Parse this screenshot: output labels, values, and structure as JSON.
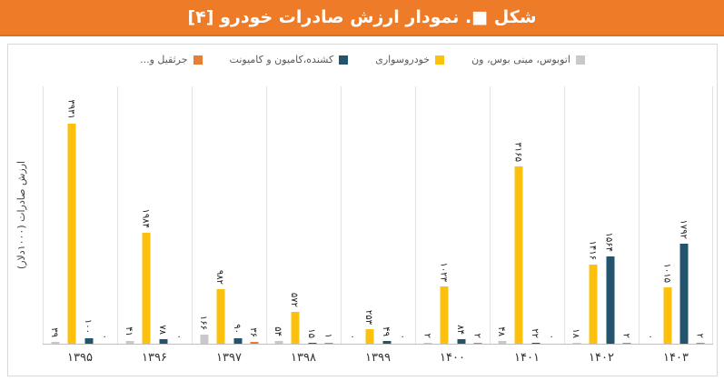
{
  "header": {
    "title": "شکل ■. نمودار ارزش صادرات خودرو [۴]",
    "bg_color": "#EE7B27",
    "text_color": "#FFFFFF"
  },
  "chart_data": {
    "type": "bar",
    "direction": "rtl",
    "title": "نمودار ارزش صادرات خودرو",
    "ylabel": "ارزش صادرات (۱۰۰۰دلار)",
    "xlabel": "",
    "categories": [
      "۱۳۹۵",
      "۱۳۹۶",
      "۱۳۹۷",
      "۱۳۹۸",
      "۱۳۹۹",
      "۱۴۰۰",
      "۱۴۰۱",
      "۱۴۰۲",
      "۱۴۰۳"
    ],
    "categories_en": [
      1395,
      1396,
      1397,
      1398,
      1399,
      1400,
      1401,
      1402,
      1403
    ],
    "ylim": [
      0,
      4600
    ],
    "y_ticks_visible": false,
    "grid": "vertical-category-separators",
    "legend_position": "top-center",
    "series": [
      {
        "key": "bus-minibus-van",
        "name": "اتوبوس، مینی بوس، ون",
        "color": "#C9C9C9",
        "values": [
          39,
          41,
          166,
          54,
          0,
          2,
          48,
          18,
          0
        ],
        "labels_fa": [
          "۳۹",
          "۴۱",
          "۱۶۶",
          "۵۴",
          "۰",
          "۲",
          "۴۸",
          "۱۸",
          "۰"
        ]
      },
      {
        "key": "passenger-car",
        "name": "خودروسواری",
        "color": "#FCC00D",
        "values": [
          3931,
          1984,
          982,
          572,
          253,
          1023,
          3165,
          1416,
          1015
        ],
        "labels_fa": [
          "۳۹۳۱",
          "۱۹۸۴",
          "۹۸۲",
          "۵۷۲",
          "۲۵۳",
          "۱۰۲۳",
          "۳۱۶۵",
          "۱۴۱۶",
          "۱۰۱۵"
        ]
      },
      {
        "key": "truck-trailer",
        "name": "کشنده،کامیون و کامیونت",
        "color": "#24536E",
        "values": [
          100,
          78,
          90,
          15,
          49,
          84,
          22,
          1564,
          1792
        ],
        "labels_fa": [
          "۱۰۰",
          "۷۸",
          "۹۰",
          "۱۵",
          "۴۹",
          "۸۴",
          "۲۲",
          "۱۵۶۴",
          "۱۷۹۲"
        ]
      },
      {
        "key": "crane",
        "name": "جرثقیل و...",
        "color": "#E87E35",
        "values": [
          0,
          0,
          36,
          1,
          0,
          2,
          0,
          2,
          2
        ],
        "labels_fa": [
          "۰",
          "۰",
          "۳۶",
          "۱",
          "۰",
          "۲",
          "۰",
          "۲",
          "۲"
        ]
      }
    ]
  }
}
